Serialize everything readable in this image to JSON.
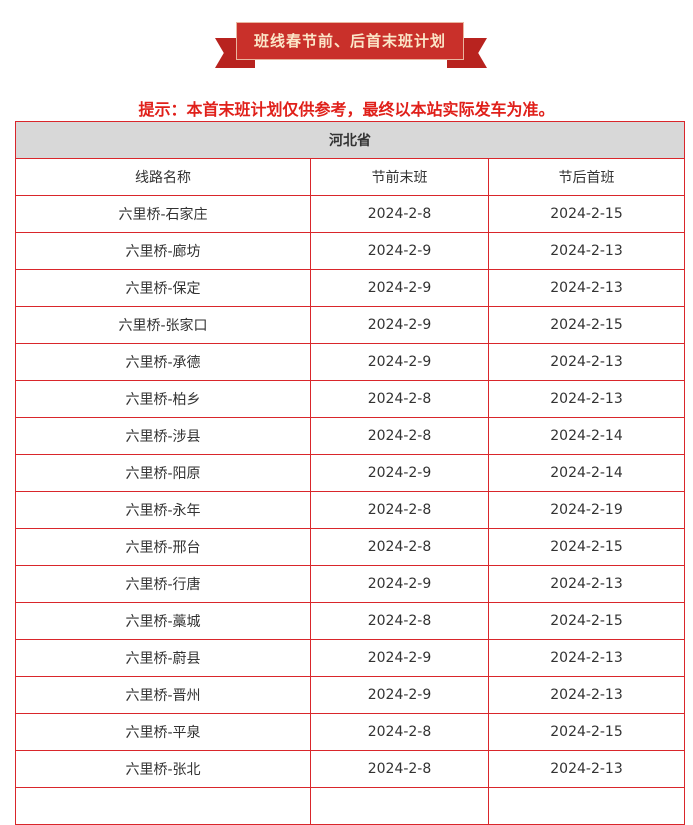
{
  "banner": {
    "title": "班线春节前、后首末班计划"
  },
  "notice": "提示：本首末班计划仅供参考，最终以本站实际发车为准。",
  "table": {
    "province": "河北省",
    "headers": [
      "线路名称",
      "节前末班",
      "节后首班"
    ],
    "rows": [
      [
        "六里桥-石家庄",
        "2024-2-8",
        "2024-2-15"
      ],
      [
        "六里桥-廊坊",
        "2024-2-9",
        "2024-2-13"
      ],
      [
        "六里桥-保定",
        "2024-2-9",
        "2024-2-13"
      ],
      [
        "六里桥-张家口",
        "2024-2-9",
        "2024-2-15"
      ],
      [
        "六里桥-承德",
        "2024-2-9",
        "2024-2-13"
      ],
      [
        "六里桥-柏乡",
        "2024-2-8",
        "2024-2-13"
      ],
      [
        "六里桥-涉县",
        "2024-2-8",
        "2024-2-14"
      ],
      [
        "六里桥-阳原",
        "2024-2-9",
        "2024-2-14"
      ],
      [
        "六里桥-永年",
        "2024-2-8",
        "2024-2-19"
      ],
      [
        "六里桥-邢台",
        "2024-2-8",
        "2024-2-15"
      ],
      [
        "六里桥-行唐",
        "2024-2-9",
        "2024-2-13"
      ],
      [
        "六里桥-藁城",
        "2024-2-8",
        "2024-2-15"
      ],
      [
        "六里桥-蔚县",
        "2024-2-9",
        "2024-2-13"
      ],
      [
        "六里桥-晋州",
        "2024-2-9",
        "2024-2-13"
      ],
      [
        "六里桥-平泉",
        "2024-2-8",
        "2024-2-15"
      ],
      [
        "六里桥-张北",
        "2024-2-8",
        "2024-2-13"
      ]
    ]
  },
  "colors": {
    "accent": "#d9262b",
    "banner": "#c9302a",
    "notice": "#e0201a",
    "header_bg": "#d8d8d8"
  }
}
